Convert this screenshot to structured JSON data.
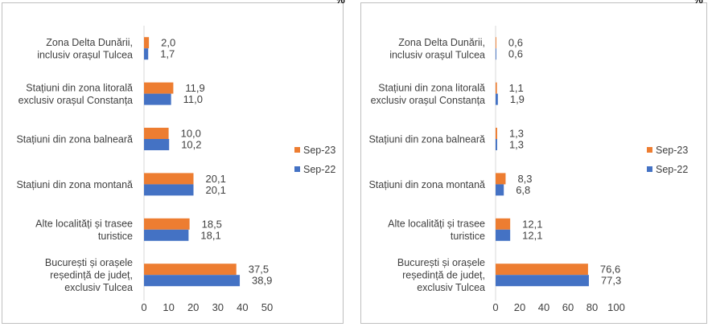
{
  "unit_label": "%",
  "colors": {
    "sep23": "#ED7D31",
    "sep22": "#4472C4",
    "frame": "#BFBFBF",
    "axis": "#D9D9D9"
  },
  "chart_data": [
    {
      "type": "bar",
      "orientation": "horizontal",
      "categories": [
        [
          "Zona Delta Dunării,",
          "inclusiv orașul Tulcea"
        ],
        [
          "Stațiuni din zona litorală",
          "exclusiv orașul Constanța"
        ],
        [
          "Stațiuni din zona balneară"
        ],
        [
          "Stațiuni din zona montană"
        ],
        [
          "Alte localități și trasee",
          "turistice"
        ],
        [
          "București și orașele",
          "reședință de județ,",
          "exclusiv Tulcea"
        ]
      ],
      "series": [
        {
          "name": "Sep-23",
          "values": [
            2.0,
            11.9,
            10.0,
            20.1,
            18.5,
            37.5
          ],
          "labels": [
            "2,0",
            "11,9",
            "10,0",
            "20,1",
            "18,5",
            "37,5"
          ]
        },
        {
          "name": "Sep-22",
          "values": [
            1.7,
            11.0,
            10.2,
            20.1,
            18.1,
            38.9
          ],
          "labels": [
            "1,7",
            "11,0",
            "10,2",
            "20,1",
            "18,1",
            "38,9"
          ]
        }
      ],
      "xlim": [
        0,
        50
      ],
      "xticks": [
        "0",
        "10",
        "20",
        "30",
        "40",
        "50"
      ],
      "legend": "right",
      "legend_order": [
        "Sep-23",
        "Sep-22"
      ]
    },
    {
      "type": "bar",
      "orientation": "horizontal",
      "categories": [
        [
          "Zona Delta Dunării,",
          "inclusiv orașul Tulcea"
        ],
        [
          "Stațiuni din zona litorală",
          "exclusiv orașul Constanța"
        ],
        [
          "Stațiuni din zona balneară"
        ],
        [
          "Stațiuni din zona montană"
        ],
        [
          "Alte localități și trasee",
          "turistice"
        ],
        [
          "București și orașele",
          "reședință de județ,",
          "exclusiv Tulcea"
        ]
      ],
      "series": [
        {
          "name": "Sep-23",
          "values": [
            0.6,
            1.1,
            1.3,
            8.3,
            12.1,
            76.6
          ],
          "labels": [
            "0,6",
            "1,1",
            "1,3",
            "8,3",
            "12,1",
            "76,6"
          ]
        },
        {
          "name": "Sep-22",
          "values": [
            0.6,
            1.9,
            1.3,
            6.8,
            12.1,
            77.3
          ],
          "labels": [
            "0,6",
            "1,9",
            "1,3",
            "6,8",
            "12,1",
            "77,3"
          ]
        }
      ],
      "xlim": [
        0,
        100
      ],
      "xticks": [
        "0",
        "20",
        "40",
        "60",
        "80",
        "100"
      ],
      "legend": "right",
      "legend_order": [
        "Sep-23",
        "Sep-22"
      ]
    }
  ]
}
